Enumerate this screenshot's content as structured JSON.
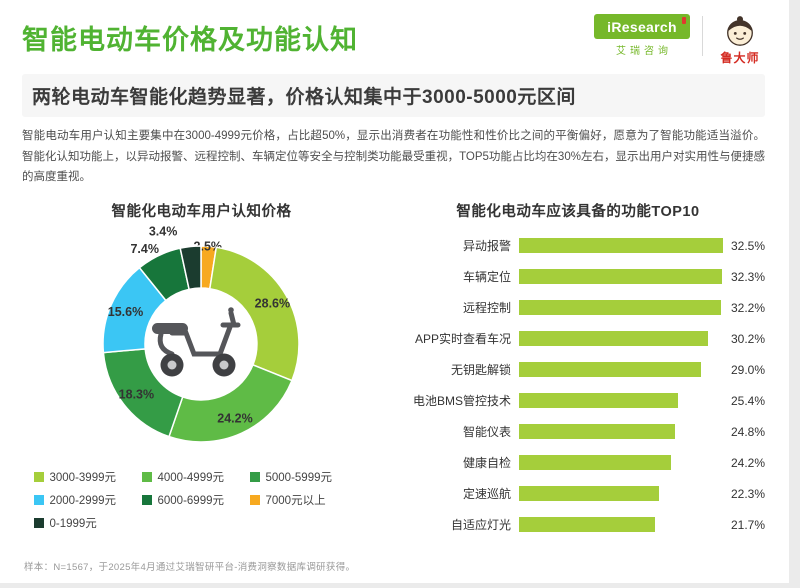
{
  "page": {
    "title": "智能电动车价格及功能认知",
    "subtitle": "两轮电动车智能化趋势显著，价格认知集中于3000-5000元区间",
    "body": "智能电动车用户认知主要集中在3000-4999元价格，占比超50%，显示出消费者在功能性和性价比之间的平衡偏好，愿意为了智能功能适当溢价。智能化认知功能上，以异动报警、远程控制、车辆定位等安全与控制类功能最受重视，TOP5功能占比均在30%左右，显示出用户对实用性与便捷感的高度重视。",
    "footnote": "样本：N=1567，于2025年4月通过艾瑞智研平台-消费洞察数据库调研获得。"
  },
  "branding": {
    "iresearch_logo": "iResearch",
    "iresearch_cn": "艾瑞咨询",
    "partner": "鲁大师"
  },
  "colors": {
    "title_green": "#50B332",
    "logo_green": "#76B82A",
    "bar_green": "#A5CE3B",
    "partner_red": "#D42B22"
  },
  "chart_data": [
    {
      "type": "pie",
      "donut": true,
      "title": "智能化电动车用户认知价格",
      "unit": "%",
      "order": "clockwise-from-top",
      "slices": [
        {
          "label": "7000元以上",
          "value": 2.5,
          "color": "#F7A920"
        },
        {
          "label": "3000-3999元",
          "value": 28.6,
          "color": "#A5CE3B"
        },
        {
          "label": "4000-4999元",
          "value": 24.2,
          "color": "#5FBB46"
        },
        {
          "label": "5000-5999元",
          "value": 18.3,
          "color": "#349C46"
        },
        {
          "label": "2000-2999元",
          "value": 15.6,
          "color": "#3BC6F4"
        },
        {
          "label": "6000-6999元",
          "value": 7.4,
          "color": "#17763B"
        },
        {
          "label": "0-1999元",
          "value": 3.4,
          "color": "#1B3C2F"
        }
      ],
      "legend_order": [
        "3000-3999元",
        "4000-4999元",
        "5000-5999元",
        "2000-2999元",
        "6000-6999元",
        "7000元以上",
        "0-1999元"
      ]
    },
    {
      "type": "bar",
      "orientation": "horizontal",
      "title": "智能化电动车应该具备的功能TOP10",
      "categories": [
        "异动报警",
        "车辆定位",
        "远程控制",
        "APP实时查看车况",
        "无钥匙解锁",
        "电池BMS管控技术",
        "智能仪表",
        "健康自检",
        "定速巡航",
        "自适应灯光"
      ],
      "values": [
        32.5,
        32.3,
        32.2,
        30.2,
        29.0,
        25.4,
        24.8,
        24.2,
        22.3,
        21.7
      ],
      "unit": "%",
      "xlim": [
        0,
        32.5
      ],
      "grid": false,
      "legend": "none"
    }
  ]
}
